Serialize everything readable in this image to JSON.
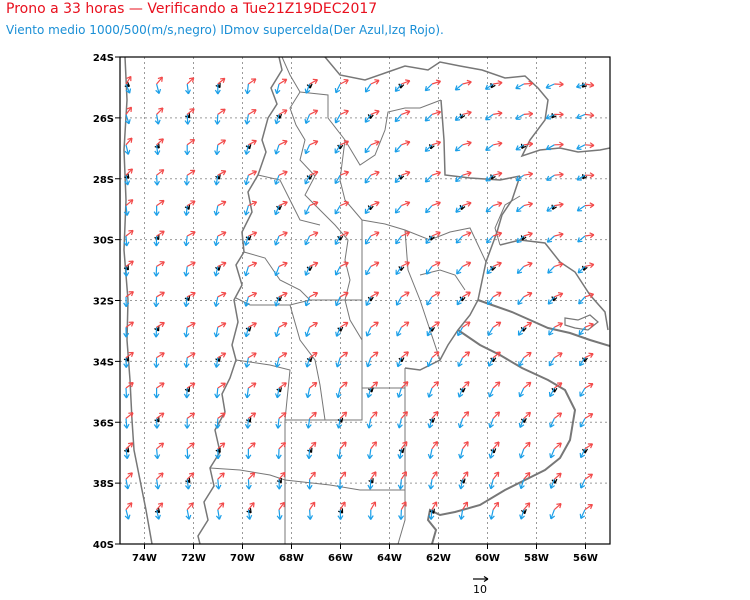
{
  "title": "Prono a 33 horas — Verificando a Tue21Z19DEC2017",
  "subtitle": "Viento medio 1000/500(m/s,negro) IDmov supercelda(Der Azul,Izq Rojo).",
  "map": {
    "lat_range": [
      -40,
      -24
    ],
    "lon_range": [
      -75,
      -55
    ],
    "lat_ticks": [
      "24S",
      "26S",
      "28S",
      "30S",
      "32S",
      "34S",
      "36S",
      "38S",
      "40S"
    ],
    "lon_ticks": [
      "74W",
      "72W",
      "70W",
      "68W",
      "66W",
      "64W",
      "62W",
      "60W",
      "58W",
      "56W"
    ],
    "grid": "dotted",
    "reference_vector_label": "10",
    "colors": {
      "mean_wind": "#000000",
      "right_mover": "#1a9fe8",
      "left_mover": "#f24a4a",
      "boundaries": "#777777",
      "grid": "#9a9a9a"
    }
  }
}
